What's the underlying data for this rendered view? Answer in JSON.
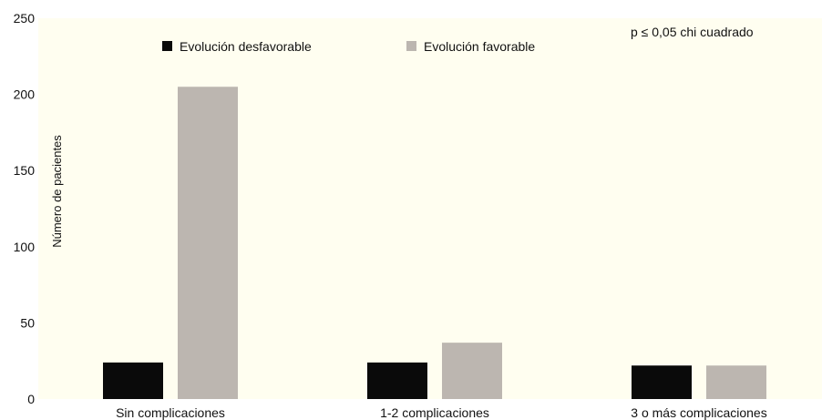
{
  "chart_data": {
    "type": "bar",
    "title": "",
    "xlabel": "",
    "ylabel": "Número de pacientes",
    "categories": [
      "Sin complicaciones",
      "1-2 complicaciones",
      "3 o más complicaciones"
    ],
    "series": [
      {
        "name": "Evolución desfavorable",
        "values": [
          24,
          24,
          22
        ],
        "color": "#0a0a0a"
      },
      {
        "name": "Evolución favorable",
        "values": [
          205,
          37,
          22
        ],
        "color": "#bcb6b0"
      }
    ],
    "ylim": [
      0,
      250
    ],
    "yticks": [
      0,
      50,
      100,
      150,
      200,
      250
    ],
    "grid": false,
    "legend_position": "top",
    "annotation": "p ≤ 0,05 chi cuadrado",
    "plot_background": "#fffef0"
  }
}
